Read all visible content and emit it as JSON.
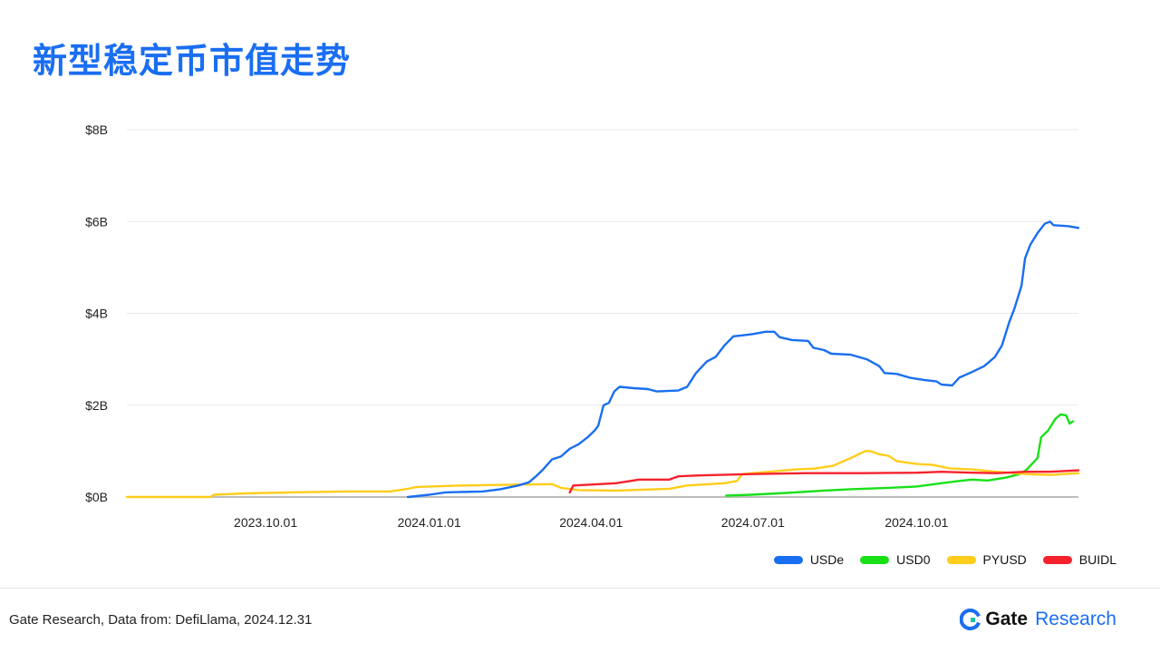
{
  "title": "新型稳定币市值走势",
  "footer": {
    "source": "Gate Research, Data from: DefiLlama, 2024.12.31",
    "brand_name": "Gate",
    "brand_sub": "Research"
  },
  "chart_data": {
    "type": "line",
    "title": "新型稳定币市值走势",
    "xlabel": "",
    "ylabel": "",
    "x_range": [
      "2023-07-15",
      "2024-12-31"
    ],
    "x_ticks": [
      {
        "date": "2023-10-01",
        "label": "2023.10.01"
      },
      {
        "date": "2024-01-01",
        "label": "2024.01.01"
      },
      {
        "date": "2024-04-01",
        "label": "2024.04.01"
      },
      {
        "date": "2024-07-01",
        "label": "2024.07.01"
      },
      {
        "date": "2024-10-01",
        "label": "2024.10.01"
      }
    ],
    "ylim": [
      0,
      8
    ],
    "y_ticks": [
      {
        "value": 0,
        "label": "$0B"
      },
      {
        "value": 2,
        "label": "$2B"
      },
      {
        "value": 4,
        "label": "$4B"
      },
      {
        "value": 6,
        "label": "$6B"
      },
      {
        "value": 8,
        "label": "$8B"
      }
    ],
    "grid": true,
    "legend_position": "bottom-right",
    "series": [
      {
        "name": "USDe",
        "color": "#1a6ef2",
        "points": [
          [
            "2023-12-20",
            0.0
          ],
          [
            "2024-01-01",
            0.05
          ],
          [
            "2024-01-10",
            0.1
          ],
          [
            "2024-01-31",
            0.12
          ],
          [
            "2024-02-10",
            0.17
          ],
          [
            "2024-02-20",
            0.25
          ],
          [
            "2024-02-26",
            0.32
          ],
          [
            "2024-03-01",
            0.45
          ],
          [
            "2024-03-05",
            0.6
          ],
          [
            "2024-03-10",
            0.82
          ],
          [
            "2024-03-15",
            0.88
          ],
          [
            "2024-03-20",
            1.05
          ],
          [
            "2024-03-25",
            1.15
          ],
          [
            "2024-03-30",
            1.3
          ],
          [
            "2024-04-03",
            1.45
          ],
          [
            "2024-04-05",
            1.55
          ],
          [
            "2024-04-08",
            2.0
          ],
          [
            "2024-04-11",
            2.05
          ],
          [
            "2024-04-14",
            2.3
          ],
          [
            "2024-04-17",
            2.4
          ],
          [
            "2024-04-25",
            2.37
          ],
          [
            "2024-05-03",
            2.35
          ],
          [
            "2024-05-08",
            2.3
          ],
          [
            "2024-05-20",
            2.32
          ],
          [
            "2024-05-25",
            2.4
          ],
          [
            "2024-05-30",
            2.7
          ],
          [
            "2024-06-05",
            2.95
          ],
          [
            "2024-06-10",
            3.05
          ],
          [
            "2024-06-15",
            3.3
          ],
          [
            "2024-06-20",
            3.5
          ],
          [
            "2024-06-25",
            3.52
          ],
          [
            "2024-07-01",
            3.55
          ],
          [
            "2024-07-08",
            3.6
          ],
          [
            "2024-07-13",
            3.6
          ],
          [
            "2024-07-16",
            3.48
          ],
          [
            "2024-07-23",
            3.42
          ],
          [
            "2024-08-01",
            3.4
          ],
          [
            "2024-08-04",
            3.25
          ],
          [
            "2024-08-10",
            3.2
          ],
          [
            "2024-08-14",
            3.12
          ],
          [
            "2024-08-25",
            3.1
          ],
          [
            "2024-09-03",
            3.0
          ],
          [
            "2024-09-10",
            2.85
          ],
          [
            "2024-09-13",
            2.7
          ],
          [
            "2024-09-20",
            2.68
          ],
          [
            "2024-09-27",
            2.6
          ],
          [
            "2024-10-05",
            2.55
          ],
          [
            "2024-10-12",
            2.52
          ],
          [
            "2024-10-15",
            2.45
          ],
          [
            "2024-10-21",
            2.43
          ],
          [
            "2024-10-25",
            2.6
          ],
          [
            "2024-11-01",
            2.72
          ],
          [
            "2024-11-08",
            2.85
          ],
          [
            "2024-11-14",
            3.05
          ],
          [
            "2024-11-18",
            3.3
          ],
          [
            "2024-11-22",
            3.8
          ],
          [
            "2024-11-25",
            4.1
          ],
          [
            "2024-11-29",
            4.6
          ],
          [
            "2024-12-01",
            5.2
          ],
          [
            "2024-12-04",
            5.5
          ],
          [
            "2024-12-08",
            5.75
          ],
          [
            "2024-12-12",
            5.95
          ],
          [
            "2024-12-15",
            6.0
          ],
          [
            "2024-12-17",
            5.92
          ],
          [
            "2024-12-25",
            5.9
          ],
          [
            "2024-12-31",
            5.86
          ]
        ]
      },
      {
        "name": "USD0",
        "color": "#19e019",
        "points": [
          [
            "2024-06-16",
            0.03
          ],
          [
            "2024-06-30",
            0.05
          ],
          [
            "2024-07-15",
            0.08
          ],
          [
            "2024-07-25",
            0.1
          ],
          [
            "2024-08-10",
            0.14
          ],
          [
            "2024-08-25",
            0.17
          ],
          [
            "2024-09-15",
            0.2
          ],
          [
            "2024-10-01",
            0.23
          ],
          [
            "2024-10-15",
            0.3
          ],
          [
            "2024-10-25",
            0.35
          ],
          [
            "2024-11-01",
            0.38
          ],
          [
            "2024-11-10",
            0.36
          ],
          [
            "2024-11-20",
            0.42
          ],
          [
            "2024-11-28",
            0.5
          ],
          [
            "2024-12-02",
            0.6
          ],
          [
            "2024-12-08",
            0.85
          ],
          [
            "2024-12-10",
            1.3
          ],
          [
            "2024-12-14",
            1.45
          ],
          [
            "2024-12-18",
            1.7
          ],
          [
            "2024-12-21",
            1.8
          ],
          [
            "2024-12-24",
            1.78
          ],
          [
            "2024-12-26",
            1.6
          ],
          [
            "2024-12-28",
            1.65
          ]
        ]
      },
      {
        "name": "PYUSD",
        "color": "#ffcd1a",
        "points": [
          [
            "2023-07-15",
            0.0
          ],
          [
            "2023-08-31",
            0.0
          ],
          [
            "2023-09-02",
            0.05
          ],
          [
            "2023-09-20",
            0.08
          ],
          [
            "2023-10-15",
            0.1
          ],
          [
            "2023-11-15",
            0.12
          ],
          [
            "2023-12-10",
            0.12
          ],
          [
            "2023-12-20",
            0.18
          ],
          [
            "2023-12-25",
            0.22
          ],
          [
            "2024-01-20",
            0.25
          ],
          [
            "2024-02-20",
            0.27
          ],
          [
            "2024-03-10",
            0.28
          ],
          [
            "2024-03-15",
            0.2
          ],
          [
            "2024-03-25",
            0.15
          ],
          [
            "2024-04-15",
            0.14
          ],
          [
            "2024-05-15",
            0.18
          ],
          [
            "2024-05-25",
            0.25
          ],
          [
            "2024-06-15",
            0.3
          ],
          [
            "2024-06-22",
            0.35
          ],
          [
            "2024-06-25",
            0.5
          ],
          [
            "2024-07-10",
            0.55
          ],
          [
            "2024-07-25",
            0.6
          ],
          [
            "2024-08-05",
            0.62
          ],
          [
            "2024-08-15",
            0.68
          ],
          [
            "2024-08-25",
            0.85
          ],
          [
            "2024-09-02",
            1.0
          ],
          [
            "2024-09-05",
            1.0
          ],
          [
            "2024-09-10",
            0.93
          ],
          [
            "2024-09-15",
            0.9
          ],
          [
            "2024-09-20",
            0.78
          ],
          [
            "2024-10-01",
            0.72
          ],
          [
            "2024-10-10",
            0.7
          ],
          [
            "2024-10-20",
            0.62
          ],
          [
            "2024-11-01",
            0.6
          ],
          [
            "2024-11-15",
            0.55
          ],
          [
            "2024-12-01",
            0.5
          ],
          [
            "2024-12-15",
            0.48
          ],
          [
            "2024-12-31",
            0.52
          ]
        ]
      },
      {
        "name": "BUIDL",
        "color": "#f5222d",
        "points": [
          [
            "2024-03-20",
            0.1
          ],
          [
            "2024-03-22",
            0.25
          ],
          [
            "2024-04-01",
            0.27
          ],
          [
            "2024-04-15",
            0.3
          ],
          [
            "2024-04-28",
            0.38
          ],
          [
            "2024-05-15",
            0.38
          ],
          [
            "2024-05-20",
            0.45
          ],
          [
            "2024-06-01",
            0.47
          ],
          [
            "2024-07-01",
            0.5
          ],
          [
            "2024-08-01",
            0.52
          ],
          [
            "2024-09-01",
            0.52
          ],
          [
            "2024-10-01",
            0.53
          ],
          [
            "2024-10-15",
            0.55
          ],
          [
            "2024-11-01",
            0.53
          ],
          [
            "2024-11-15",
            0.52
          ],
          [
            "2024-12-01",
            0.55
          ],
          [
            "2024-12-15",
            0.55
          ],
          [
            "2024-12-31",
            0.58
          ]
        ]
      }
    ]
  }
}
